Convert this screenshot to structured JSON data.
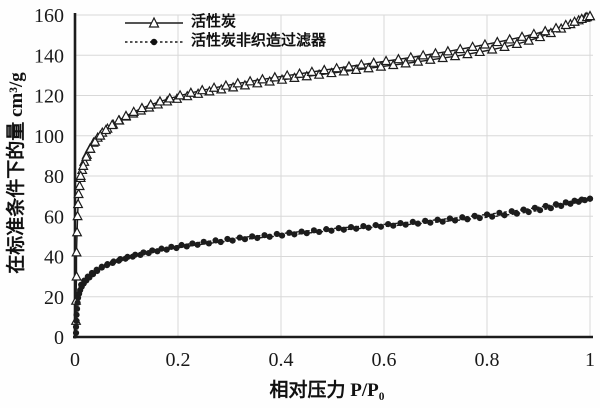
{
  "figure": {
    "background": "#ffffff"
  },
  "legend": {
    "items": [
      {
        "label": "活性炭",
        "marker": "open-triangle",
        "line": "solid"
      },
      {
        "label": "活性炭非织造过滤器",
        "marker": "filled-circle",
        "line": "dashed"
      }
    ]
  },
  "chart_data": {
    "type": "line",
    "title": "",
    "xlabel": "相对压力 P/P₀",
    "ylabel": "在标准条件下的量 cm³/g",
    "xlim": [
      0,
      1
    ],
    "ylim": [
      0,
      160
    ],
    "x_ticks": [
      0,
      0.2,
      0.4,
      0.6,
      0.8,
      1
    ],
    "y_ticks": [
      0,
      20,
      40,
      60,
      80,
      100,
      120,
      140,
      160
    ],
    "grid": true,
    "legend_position": "top-left-inside",
    "colors": {
      "line": "#1c1c1c",
      "grid": "#d8d8d8",
      "text": "#1a1a1a",
      "marker_fill": "#ffffff"
    },
    "series": [
      {
        "id": "activated-carbon-adsorption",
        "name": "活性炭",
        "branch": "adsorption",
        "marker": "open-triangle",
        "line": "solid",
        "points": [
          [
            0.002,
            8
          ],
          [
            0.002,
            18
          ],
          [
            0.003,
            30
          ],
          [
            0.003,
            42
          ],
          [
            0.004,
            52
          ],
          [
            0.005,
            60
          ],
          [
            0.006,
            66
          ],
          [
            0.007,
            71
          ],
          [
            0.009,
            75
          ],
          [
            0.011,
            79
          ],
          [
            0.014,
            83
          ],
          [
            0.018,
            87
          ],
          [
            0.023,
            90.5
          ],
          [
            0.029,
            93.5
          ],
          [
            0.036,
            96.5
          ],
          [
            0.044,
            99
          ],
          [
            0.053,
            101.5
          ],
          [
            0.063,
            103.5
          ],
          [
            0.074,
            105.5
          ],
          [
            0.086,
            107.5
          ],
          [
            0.099,
            109.5
          ],
          [
            0.113,
            111
          ],
          [
            0.128,
            112.5
          ],
          [
            0.144,
            114
          ],
          [
            0.161,
            115.5
          ],
          [
            0.179,
            117
          ],
          [
            0.198,
            118.3
          ],
          [
            0.218,
            119.6
          ],
          [
            0.239,
            120.8
          ],
          [
            0.261,
            122
          ],
          [
            0.284,
            123
          ],
          [
            0.307,
            124
          ],
          [
            0.33,
            125
          ],
          [
            0.354,
            126
          ],
          [
            0.378,
            126.9
          ],
          [
            0.402,
            127.8
          ],
          [
            0.426,
            128.7
          ],
          [
            0.45,
            129.5
          ],
          [
            0.474,
            130.3
          ],
          [
            0.498,
            131.1
          ],
          [
            0.522,
            131.9
          ],
          [
            0.546,
            132.7
          ],
          [
            0.57,
            133.5
          ],
          [
            0.594,
            134.3
          ],
          [
            0.618,
            135.1
          ],
          [
            0.642,
            135.9
          ],
          [
            0.666,
            136.8
          ],
          [
            0.69,
            137.7
          ],
          [
            0.714,
            138.6
          ],
          [
            0.738,
            139.5
          ],
          [
            0.762,
            140.5
          ],
          [
            0.786,
            141.6
          ],
          [
            0.81,
            142.8
          ],
          [
            0.834,
            144.1
          ],
          [
            0.858,
            145.6
          ],
          [
            0.881,
            147.2
          ],
          [
            0.903,
            149
          ],
          [
            0.924,
            151
          ],
          [
            0.944,
            153.2
          ],
          [
            0.962,
            155.4
          ],
          [
            0.978,
            157.3
          ],
          [
            0.991,
            158.6
          ],
          [
            1.0,
            159.4
          ]
        ]
      },
      {
        "id": "activated-carbon-desorption",
        "name": "活性炭",
        "branch": "desorption",
        "marker": "open-triangle",
        "line": "solid",
        "points": [
          [
            0.011,
            80
          ],
          [
            0.016,
            85
          ],
          [
            0.022,
            89.5
          ],
          [
            0.03,
            93.5
          ],
          [
            0.039,
            97
          ],
          [
            0.049,
            100
          ],
          [
            0.06,
            102.8
          ],
          [
            0.072,
            105.3
          ],
          [
            0.085,
            107.6
          ],
          [
            0.099,
            109.8
          ],
          [
            0.114,
            111.8
          ],
          [
            0.13,
            113.7
          ],
          [
            0.147,
            115.4
          ],
          [
            0.165,
            117
          ],
          [
            0.184,
            118.5
          ],
          [
            0.204,
            120
          ],
          [
            0.225,
            121.3
          ],
          [
            0.247,
            122.6
          ],
          [
            0.27,
            123.8
          ],
          [
            0.293,
            124.9
          ],
          [
            0.316,
            126
          ],
          [
            0.34,
            127
          ],
          [
            0.364,
            128
          ],
          [
            0.388,
            129
          ],
          [
            0.412,
            129.9
          ],
          [
            0.436,
            130.8
          ],
          [
            0.46,
            131.7
          ],
          [
            0.484,
            132.6
          ],
          [
            0.508,
            133.5
          ],
          [
            0.532,
            134.4
          ],
          [
            0.556,
            135.3
          ],
          [
            0.58,
            136.2
          ],
          [
            0.604,
            137.1
          ],
          [
            0.628,
            138
          ],
          [
            0.652,
            138.9
          ],
          [
            0.676,
            139.9
          ],
          [
            0.7,
            140.9
          ],
          [
            0.724,
            141.9
          ],
          [
            0.748,
            143
          ],
          [
            0.772,
            144.1
          ],
          [
            0.796,
            145.3
          ],
          [
            0.82,
            146.5
          ],
          [
            0.844,
            147.8
          ],
          [
            0.868,
            149.1
          ],
          [
            0.891,
            150.5
          ],
          [
            0.913,
            151.9
          ],
          [
            0.934,
            153.4
          ],
          [
            0.953,
            155
          ],
          [
            0.97,
            156.6
          ],
          [
            0.984,
            158
          ],
          [
            0.994,
            158.9
          ],
          [
            1.0,
            159.4
          ]
        ]
      },
      {
        "id": "nonwoven-filter-adsorption",
        "name": "活性炭非织造过滤器",
        "branch": "adsorption",
        "marker": "filled-circle",
        "line": "dashed",
        "points": [
          [
            0.002,
            2
          ],
          [
            0.002,
            5
          ],
          [
            0.003,
            8
          ],
          [
            0.003,
            11
          ],
          [
            0.004,
            14
          ],
          [
            0.005,
            17
          ],
          [
            0.006,
            19.5
          ],
          [
            0.008,
            21.5
          ],
          [
            0.01,
            23.3
          ],
          [
            0.013,
            25
          ],
          [
            0.017,
            26.6
          ],
          [
            0.022,
            28.1
          ],
          [
            0.028,
            29.6
          ],
          [
            0.035,
            31.2
          ],
          [
            0.043,
            32.8
          ],
          [
            0.052,
            34.5
          ],
          [
            0.062,
            35.7
          ],
          [
            0.073,
            36.8
          ],
          [
            0.085,
            37.9
          ],
          [
            0.098,
            38.9
          ],
          [
            0.112,
            39.9
          ],
          [
            0.127,
            40.8
          ],
          [
            0.143,
            41.7
          ],
          [
            0.16,
            42.6
          ],
          [
            0.178,
            43.4
          ],
          [
            0.197,
            44.2
          ],
          [
            0.217,
            45
          ],
          [
            0.238,
            45.8
          ],
          [
            0.26,
            46.5
          ],
          [
            0.283,
            47.2
          ],
          [
            0.306,
            47.9
          ],
          [
            0.33,
            48.6
          ],
          [
            0.354,
            49.2
          ],
          [
            0.378,
            49.8
          ],
          [
            0.402,
            50.4
          ],
          [
            0.426,
            51
          ],
          [
            0.45,
            51.6
          ],
          [
            0.474,
            52.2
          ],
          [
            0.498,
            52.8
          ],
          [
            0.522,
            53.3
          ],
          [
            0.546,
            53.8
          ],
          [
            0.57,
            54.3
          ],
          [
            0.594,
            54.8
          ],
          [
            0.618,
            55.3
          ],
          [
            0.642,
            55.8
          ],
          [
            0.666,
            56.3
          ],
          [
            0.69,
            56.8
          ],
          [
            0.714,
            57.3
          ],
          [
            0.738,
            57.9
          ],
          [
            0.762,
            58.5
          ],
          [
            0.786,
            59.1
          ],
          [
            0.81,
            59.8
          ],
          [
            0.834,
            60.5
          ],
          [
            0.858,
            61.3
          ],
          [
            0.881,
            62.1
          ],
          [
            0.903,
            63
          ],
          [
            0.924,
            64
          ],
          [
            0.944,
            65.1
          ],
          [
            0.962,
            66.2
          ],
          [
            0.978,
            67.2
          ],
          [
            0.99,
            68
          ],
          [
            1.0,
            68.7
          ]
        ]
      },
      {
        "id": "nonwoven-filter-desorption",
        "name": "活性炭非织造过滤器",
        "branch": "desorption",
        "marker": "filled-circle",
        "line": "dashed",
        "points": [
          [
            0.012,
            26
          ],
          [
            0.018,
            28
          ],
          [
            0.025,
            30
          ],
          [
            0.033,
            31.8
          ],
          [
            0.042,
            33.4
          ],
          [
            0.052,
            34.9
          ],
          [
            0.063,
            36.2
          ],
          [
            0.075,
            37.5
          ],
          [
            0.088,
            38.7
          ],
          [
            0.102,
            39.8
          ],
          [
            0.117,
            40.9
          ],
          [
            0.133,
            42
          ],
          [
            0.15,
            43
          ],
          [
            0.168,
            43.9
          ],
          [
            0.187,
            44.8
          ],
          [
            0.207,
            45.7
          ],
          [
            0.228,
            46.5
          ],
          [
            0.25,
            47.3
          ],
          [
            0.273,
            48
          ],
          [
            0.296,
            48.7
          ],
          [
            0.32,
            49.4
          ],
          [
            0.344,
            50
          ],
          [
            0.368,
            50.6
          ],
          [
            0.392,
            51.2
          ],
          [
            0.416,
            51.8
          ],
          [
            0.44,
            52.4
          ],
          [
            0.464,
            53
          ],
          [
            0.488,
            53.6
          ],
          [
            0.512,
            54.1
          ],
          [
            0.536,
            54.6
          ],
          [
            0.56,
            55.1
          ],
          [
            0.584,
            55.6
          ],
          [
            0.608,
            56.1
          ],
          [
            0.632,
            56.6
          ],
          [
            0.656,
            57.2
          ],
          [
            0.68,
            57.7
          ],
          [
            0.704,
            58.3
          ],
          [
            0.728,
            58.9
          ],
          [
            0.752,
            59.5
          ],
          [
            0.776,
            60.2
          ],
          [
            0.8,
            60.9
          ],
          [
            0.824,
            61.7
          ],
          [
            0.848,
            62.5
          ],
          [
            0.871,
            63.3
          ],
          [
            0.893,
            64.2
          ],
          [
            0.914,
            65.1
          ],
          [
            0.934,
            66
          ],
          [
            0.953,
            66.9
          ],
          [
            0.97,
            67.7
          ],
          [
            0.984,
            68.3
          ],
          [
            1.0,
            68.7
          ]
        ]
      }
    ]
  }
}
